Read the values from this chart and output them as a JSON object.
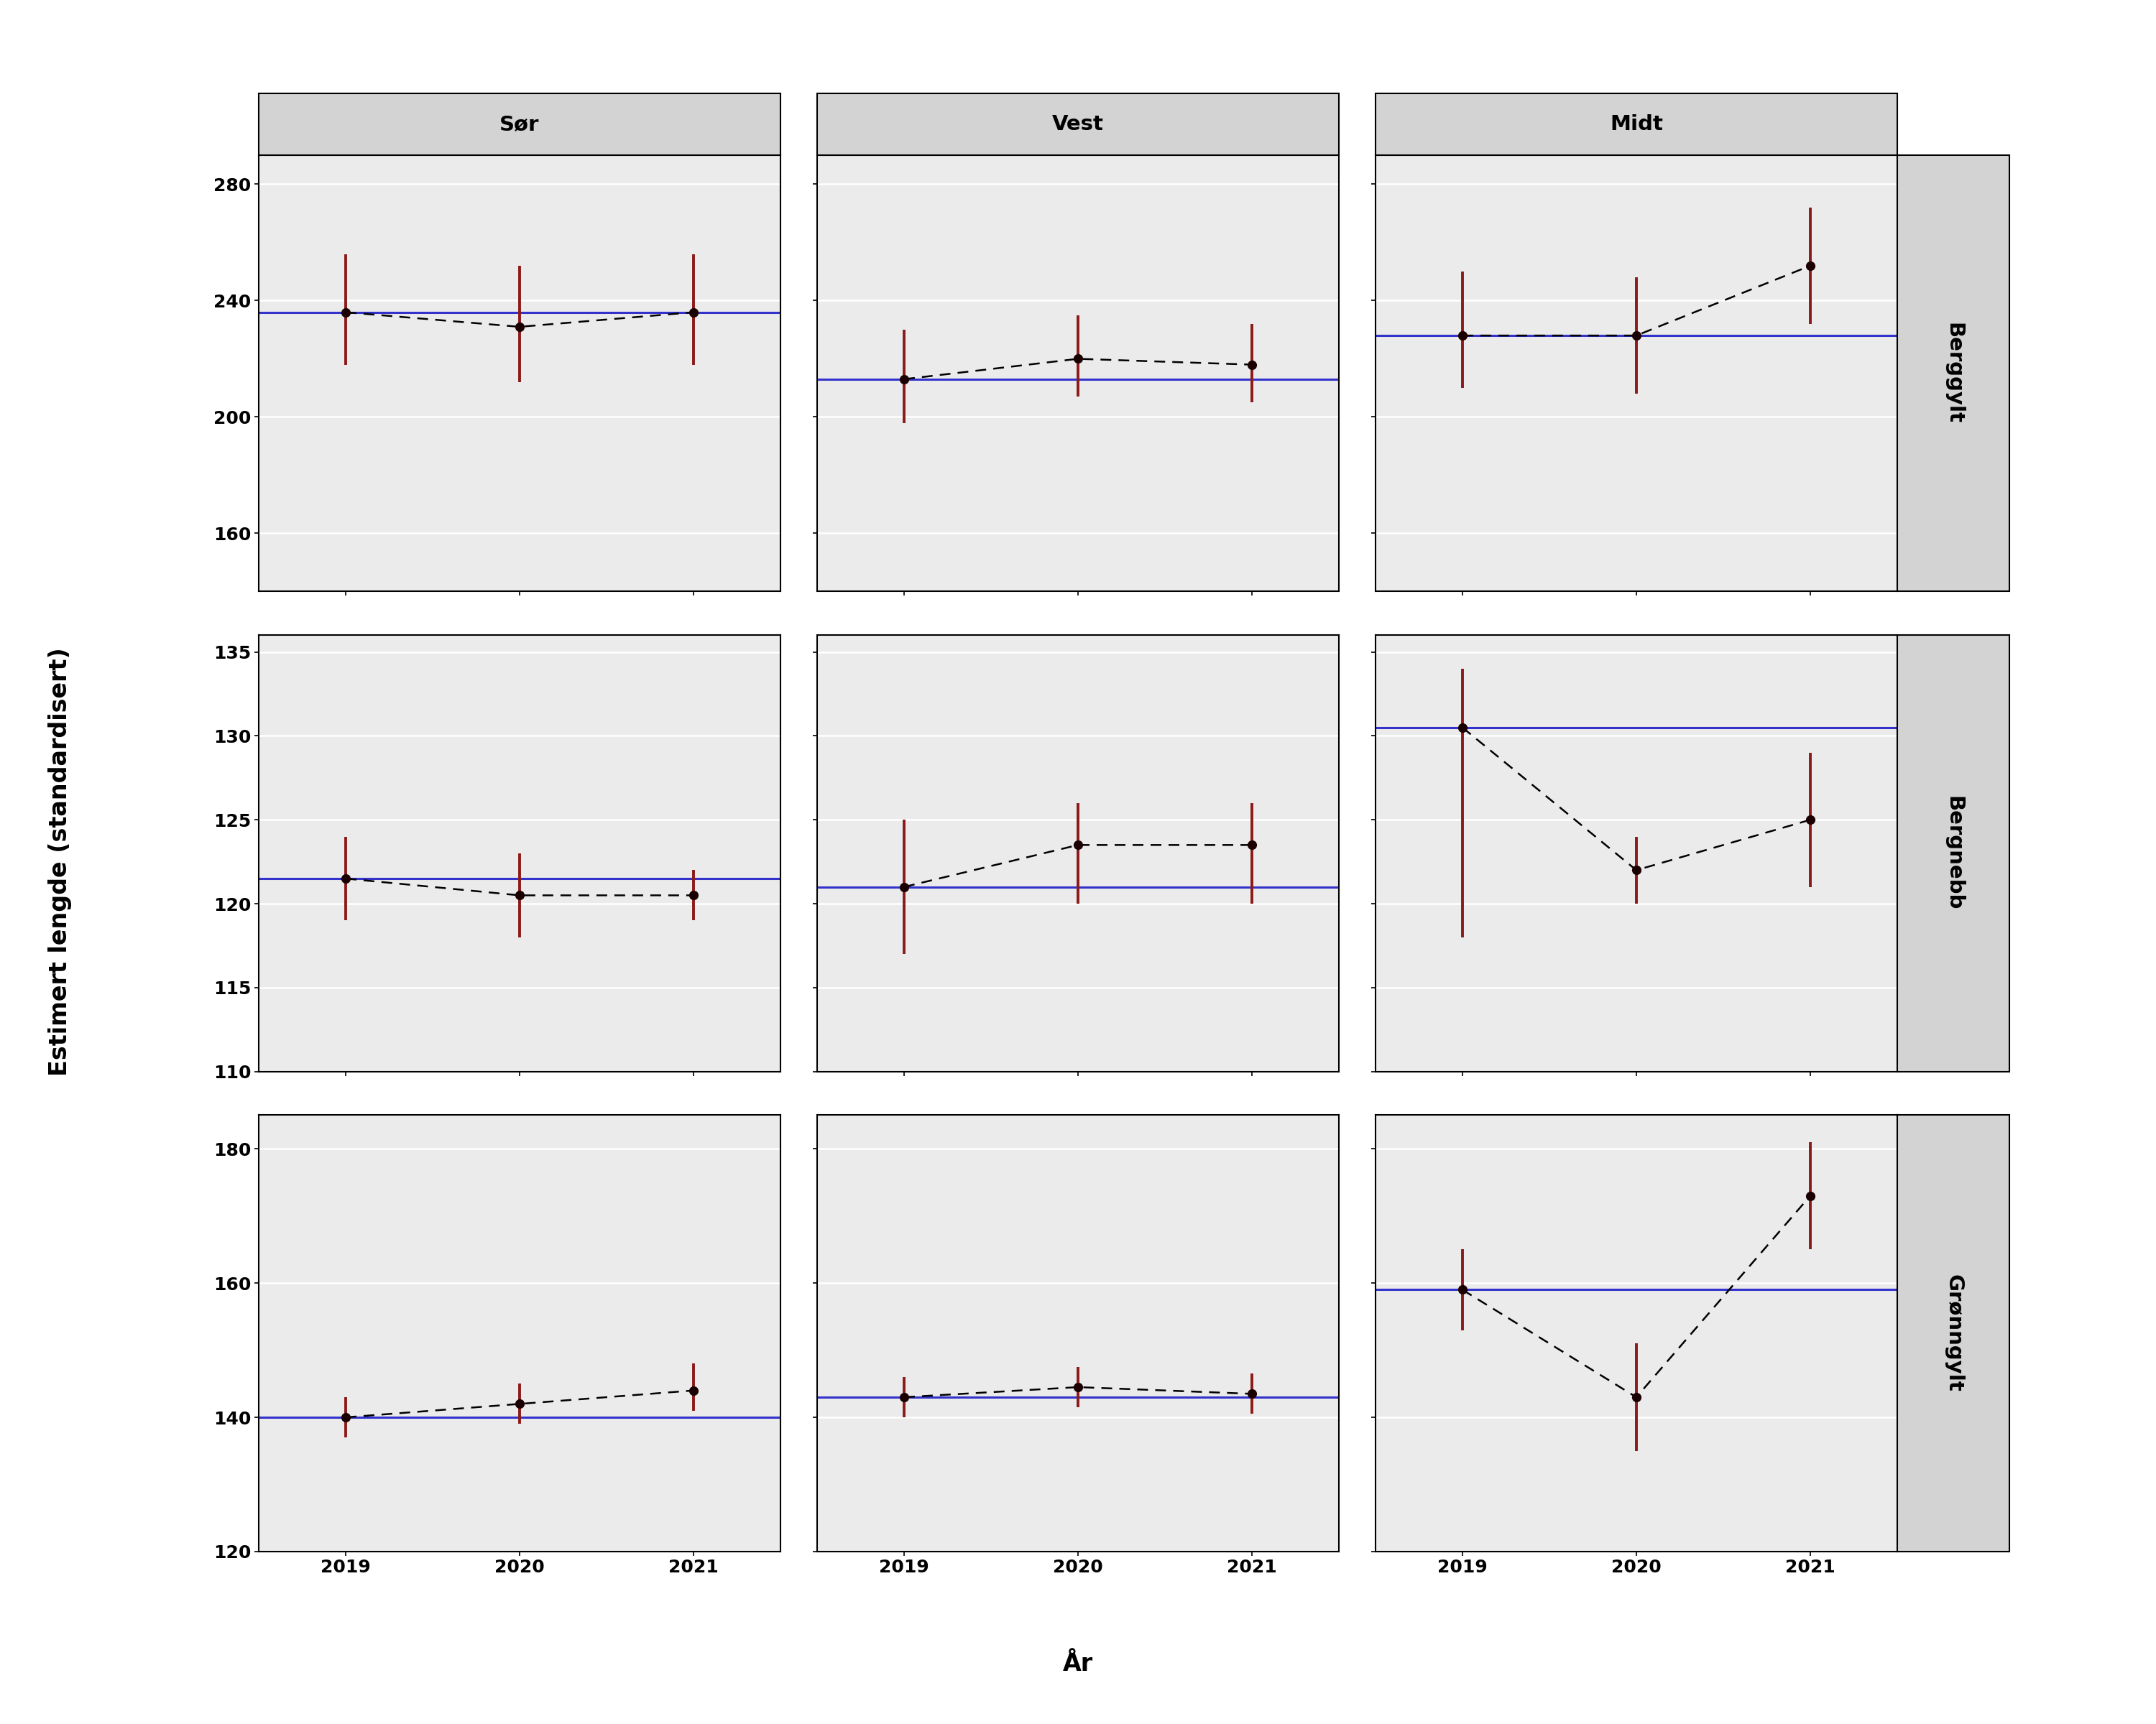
{
  "regions": [
    "Sør",
    "Vest",
    "Midt"
  ],
  "species": [
    "Berggylt",
    "Bergnebb",
    "Grønngylt"
  ],
  "years": [
    2019,
    2020,
    2021
  ],
  "data": {
    "Berggylt": {
      "Sør": {
        "mean": [
          236,
          231,
          236
        ],
        "lo": [
          218,
          212,
          218
        ],
        "hi": [
          256,
          252,
          256
        ]
      },
      "Vest": {
        "mean": [
          213,
          220,
          218
        ],
        "lo": [
          198,
          207,
          205
        ],
        "hi": [
          230,
          235,
          232
        ]
      },
      "Midt": {
        "mean": [
          228,
          228,
          252
        ],
        "lo": [
          210,
          208,
          232
        ],
        "hi": [
          250,
          248,
          272
        ]
      }
    },
    "Bergnebb": {
      "Sør": {
        "mean": [
          121.5,
          120.5,
          120.5
        ],
        "lo": [
          119,
          118,
          119
        ],
        "hi": [
          124,
          123,
          122
        ]
      },
      "Vest": {
        "mean": [
          121,
          123.5,
          123.5
        ],
        "lo": [
          117,
          120,
          120
        ],
        "hi": [
          125,
          126,
          126
        ]
      },
      "Midt": {
        "mean": [
          130.5,
          122,
          125
        ],
        "lo": [
          118,
          120,
          121
        ],
        "hi": [
          134,
          124,
          129
        ]
      }
    },
    "Grønngylt": {
      "Sør": {
        "mean": [
          140,
          142,
          144
        ],
        "lo": [
          137,
          139,
          141
        ],
        "hi": [
          143,
          145,
          148
        ]
      },
      "Vest": {
        "mean": [
          143,
          144.5,
          143.5
        ],
        "lo": [
          140,
          141.5,
          140.5
        ],
        "hi": [
          146,
          147.5,
          146.5
        ]
      },
      "Midt": {
        "mean": [
          159,
          143,
          173
        ],
        "lo": [
          153,
          135,
          165
        ],
        "hi": [
          165,
          151,
          181
        ]
      }
    }
  },
  "blue_lines": {
    "Berggylt": {
      "Sør": 236,
      "Vest": 213,
      "Midt": 228
    },
    "Bergnebb": {
      "Sør": 121.5,
      "Vest": 121,
      "Midt": 130.5
    },
    "Grønngylt": {
      "Sør": 140,
      "Vest": 143,
      "Midt": 159
    }
  },
  "ylims": {
    "Berggylt": [
      140,
      290
    ],
    "Bergnebb": [
      110,
      136
    ],
    "Grønngylt": [
      120,
      185
    ]
  },
  "yticks": {
    "Berggylt": [
      160,
      200,
      240,
      280
    ],
    "Bergnebb": [
      110,
      115,
      120,
      125,
      130,
      135
    ],
    "Grønngylt": [
      120,
      140,
      160,
      180
    ]
  },
  "strip_bg": "#d3d3d3",
  "plot_bg": "#ebebeb",
  "errorbar_color": "#8b1a1a",
  "point_color": "#1a0000",
  "line_color": "#3333cc",
  "dashed_color": "black",
  "xlabel": "År",
  "ylabel": "Estimert lengde (standardisert)",
  "label_fontsize": 22,
  "tick_fontsize": 18,
  "strip_fontsize": 21
}
